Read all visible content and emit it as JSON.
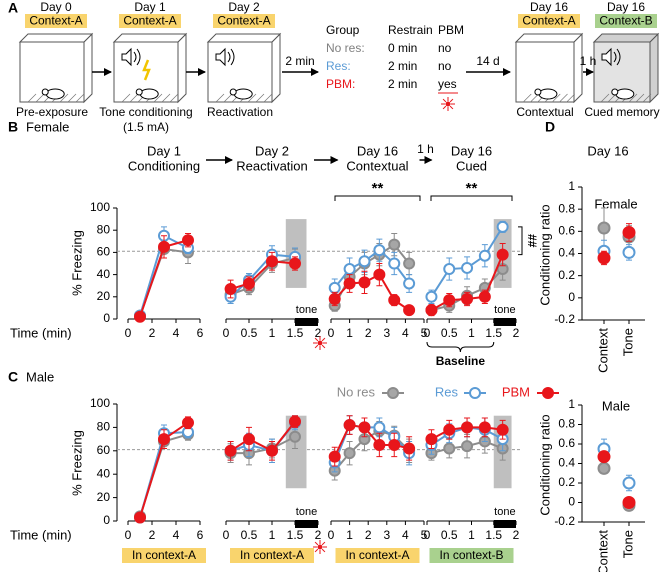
{
  "panel_a": {
    "label": "A",
    "stages": [
      {
        "day": "Day 0",
        "context": "Context-A",
        "context_color": "#f9d46d",
        "caption": [
          "Pre-exposure"
        ]
      },
      {
        "day": "Day 1",
        "context": "Context-A",
        "context_color": "#f9d46d",
        "caption": [
          "Tone conditioning",
          "(1.5 mA)"
        ]
      },
      {
        "day": "Day 2",
        "context": "Context-A",
        "context_color": "#f9d46d",
        "caption": [
          "Reactivation"
        ]
      },
      {
        "day": "Day 16",
        "context": "Context-A",
        "context_color": "#f9d46d",
        "caption": [
          "Contextual"
        ]
      },
      {
        "day": "Day 16",
        "context": "Context-B",
        "context_color": "#a9d18e",
        "caption": [
          "Cued memory"
        ]
      }
    ],
    "intervals": [
      "2 min",
      "14 d",
      "1 h"
    ],
    "groups": {
      "header": [
        "Group",
        "Restrain",
        "PBM"
      ],
      "rows": [
        [
          "No res:",
          "0 min",
          "no"
        ],
        [
          "Res:",
          "2 min",
          "no"
        ],
        [
          "PBM:",
          "2 min",
          "yes"
        ]
      ],
      "colors": [
        "#808080",
        "#5b9bd5",
        "#e8161b"
      ]
    }
  },
  "chart_data": [
    {
      "type": "line",
      "panel_label": "B",
      "title": "Female",
      "ylabel": "% Freezing",
      "xlabel": "Time (min)",
      "ylim": [
        0,
        100
      ],
      "yticks": [
        0,
        20,
        40,
        60,
        80,
        100
      ],
      "reference_line": 61,
      "subplots": [
        {
          "title": [
            "Day 1",
            "Conditioning"
          ],
          "xlim": [
            0,
            6
          ],
          "xticks": [
            0,
            2,
            4,
            6
          ],
          "x": [
            1,
            3,
            5
          ],
          "series": [
            {
              "color": "#8c8c8c",
              "fill": "#a6a6a6",
              "values": [
                3,
                63,
                60
              ],
              "errors": [
                2,
                8,
                10
              ]
            },
            {
              "color": "#5b9bd5",
              "fill": "#ffffff",
              "values": [
                3,
                75,
                64
              ],
              "errors": [
                2,
                8,
                5
              ]
            },
            {
              "color": "#e8161b",
              "fill": "#e8161b",
              "values": [
                2,
                65,
                71
              ],
              "errors": [
                2,
                10,
                6
              ]
            }
          ]
        },
        {
          "title": [
            "Day 2",
            "Reactivation"
          ],
          "xlim": [
            0,
            2
          ],
          "xticks": [
            0,
            0.5,
            1,
            1.5,
            2
          ],
          "x": [
            0.1,
            0.5,
            1,
            1.5
          ],
          "highlight": [
            1.3,
            1.75
          ],
          "tone": {
            "label": "tone",
            "range": [
              1.5,
              2
            ]
          },
          "series": [
            {
              "color": "#8c8c8c",
              "fill": "#a6a6a6",
              "values": [
                22,
                28,
                50,
                55
              ],
              "errors": [
                6,
                6,
                8,
                8
              ]
            },
            {
              "color": "#5b9bd5",
              "fill": "#ffffff",
              "values": [
                20,
                35,
                58,
                56
              ],
              "errors": [
                6,
                6,
                8,
                8
              ]
            },
            {
              "color": "#e8161b",
              "fill": "#e8161b",
              "values": [
                27,
                32,
                52,
                50
              ],
              "errors": [
                8,
                6,
                8,
                6
              ]
            }
          ]
        },
        {
          "title": [
            "Day 16",
            "Contextual"
          ],
          "xlim": [
            0,
            5
          ],
          "xticks": [
            0,
            1,
            2,
            3,
            4,
            5
          ],
          "x": [
            0.2,
            1,
            1.8,
            2.6,
            3.4,
            4.2
          ],
          "significance": "**",
          "series": [
            {
              "color": "#8c8c8c",
              "fill": "#a6a6a6",
              "values": [
                12,
                38,
                50,
                58,
                67,
                50
              ],
              "errors": [
                5,
                8,
                10,
                10,
                10,
                10
              ]
            },
            {
              "color": "#5b9bd5",
              "fill": "#ffffff",
              "values": [
                28,
                45,
                52,
                62,
                50,
                32
              ],
              "errors": [
                8,
                10,
                10,
                10,
                10,
                8
              ]
            },
            {
              "color": "#e8161b",
              "fill": "#e8161b",
              "values": [
                18,
                32,
                33,
                40,
                17,
                8
              ],
              "errors": [
                6,
                8,
                10,
                10,
                5,
                3
              ]
            }
          ]
        },
        {
          "title": [
            "Day 16",
            "Cued"
          ],
          "interval": "1 h",
          "xlim": [
            0,
            2
          ],
          "xticks": [
            0,
            0.5,
            1,
            1.5,
            2
          ],
          "x": [
            0.1,
            0.5,
            0.9,
            1.3,
            1.7
          ],
          "highlight": [
            1.5,
            1.9
          ],
          "tone": {
            "label": "tone",
            "range": [
              1.5,
              2
            ]
          },
          "significance": "**",
          "pbm_vs_res": "##",
          "baseline": "Baseline",
          "series": [
            {
              "color": "#8c8c8c",
              "fill": "#a6a6a6",
              "values": [
                8,
                12,
                21,
                28,
                45
              ],
              "errors": [
                4,
                6,
                8,
                8,
                10
              ]
            },
            {
              "color": "#5b9bd5",
              "fill": "#ffffff",
              "values": [
                20,
                45,
                46,
                57,
                83
              ],
              "errors": [
                6,
                10,
                10,
                10,
                5
              ]
            },
            {
              "color": "#e8161b",
              "fill": "#e8161b",
              "values": [
                8,
                17,
                18,
                20,
                58
              ],
              "errors": [
                5,
                6,
                6,
                6,
                10
              ]
            }
          ]
        }
      ]
    },
    {
      "type": "line",
      "panel_label": "C",
      "title": "Male",
      "ylabel": "% Freezing",
      "xlabel": "Time (min)",
      "ylim": [
        0,
        100
      ],
      "yticks": [
        0,
        20,
        40,
        60,
        80,
        100
      ],
      "reference_line": 61,
      "legend": [
        "No res",
        "Res",
        "PBM"
      ],
      "subplots": [
        {
          "context": "In context-A",
          "context_color": "#f9d46d",
          "xlim": [
            0,
            6
          ],
          "xticks": [
            0,
            2,
            4,
            6
          ],
          "x": [
            1,
            3,
            5
          ],
          "series": [
            {
              "color": "#8c8c8c",
              "fill": "#a6a6a6",
              "values": [
                4,
                68,
                74
              ],
              "errors": [
                2,
                6,
                5
              ]
            },
            {
              "color": "#5b9bd5",
              "fill": "#ffffff",
              "values": [
                3,
                75,
                76
              ],
              "errors": [
                2,
                7,
                5
              ]
            },
            {
              "color": "#e8161b",
              "fill": "#e8161b",
              "values": [
                3,
                70,
                84
              ],
              "errors": [
                2,
                8,
                5
              ]
            }
          ]
        },
        {
          "context": "In context-A",
          "context_color": "#f9d46d",
          "xlim": [
            0,
            2
          ],
          "xticks": [
            0,
            0.5,
            1,
            1.5,
            2
          ],
          "x": [
            0.1,
            0.5,
            1,
            1.5
          ],
          "highlight": [
            1.3,
            1.75
          ],
          "tone": {
            "label": "tone",
            "range": [
              1.5,
              2
            ]
          },
          "series": [
            {
              "color": "#8c8c8c",
              "fill": "#a6a6a6",
              "values": [
                58,
                58,
                62,
                72
              ],
              "errors": [
                8,
                10,
                8,
                10
              ]
            },
            {
              "color": "#5b9bd5",
              "fill": "#ffffff",
              "values": [
                60,
                65,
                60,
                84
              ],
              "errors": [
                8,
                10,
                10,
                6
              ]
            },
            {
              "color": "#e8161b",
              "fill": "#e8161b",
              "values": [
                60,
                70,
                60,
                85
              ],
              "errors": [
                8,
                10,
                8,
                5
              ]
            }
          ]
        },
        {
          "context": "In context-A",
          "context_color": "#f9d46d",
          "xlim": [
            0,
            5
          ],
          "xticks": [
            0,
            1,
            2,
            3,
            4,
            5
          ],
          "x": [
            0.2,
            1,
            1.8,
            2.6,
            3.4,
            4.2
          ],
          "series": [
            {
              "color": "#8c8c8c",
              "fill": "#a6a6a6",
              "values": [
                43,
                58,
                70,
                77,
                73,
                60
              ],
              "errors": [
                8,
                10,
                10,
                8,
                8,
                10
              ]
            },
            {
              "color": "#5b9bd5",
              "fill": "#ffffff",
              "values": [
                50,
                82,
                80,
                80,
                72,
                58
              ],
              "errors": [
                8,
                8,
                8,
                8,
                8,
                10
              ]
            },
            {
              "color": "#e8161b",
              "fill": "#e8161b",
              "values": [
                55,
                82,
                80,
                65,
                65,
                62
              ],
              "errors": [
                8,
                8,
                8,
                10,
                10,
                10
              ]
            }
          ]
        },
        {
          "context": "In context-B",
          "context_color": "#a9d18e",
          "xlim": [
            0,
            2
          ],
          "xticks": [
            0,
            0.5,
            1,
            1.5,
            2
          ],
          "x": [
            0.1,
            0.5,
            0.9,
            1.3,
            1.7
          ],
          "highlight": [
            1.5,
            1.9
          ],
          "tone": {
            "label": "tone",
            "range": [
              1.5,
              2
            ]
          },
          "series": [
            {
              "color": "#8c8c8c",
              "fill": "#a6a6a6",
              "values": [
                58,
                62,
                64,
                68,
                62
              ],
              "errors": [
                6,
                8,
                10,
                10,
                10
              ]
            },
            {
              "color": "#5b9bd5",
              "fill": "#ffffff",
              "values": [
                65,
                75,
                80,
                78,
                70
              ],
              "errors": [
                8,
                8,
                8,
                10,
                10
              ]
            },
            {
              "color": "#e8161b",
              "fill": "#e8161b",
              "values": [
                70,
                78,
                80,
                80,
                78
              ],
              "errors": [
                8,
                8,
                8,
                8,
                8
              ]
            }
          ]
        }
      ]
    },
    {
      "type": "dot",
      "panel_label": "D",
      "heading": "Day 16",
      "title": "Female",
      "ylabel": "Conditioning ratio",
      "ylim": [
        -0.2,
        1
      ],
      "yticks": [
        -0.2,
        0,
        0.2,
        0.4,
        0.6,
        0.8,
        1
      ],
      "categories": [
        "Context",
        "Tone"
      ],
      "series": [
        {
          "color": "#8c8c8c",
          "fill": "#a6a6a6",
          "values": [
            0.63,
            0.55
          ],
          "errors": [
            0.18,
            0.1
          ]
        },
        {
          "color": "#5b9bd5",
          "fill": "#ffffff",
          "values": [
            0.42,
            0.41
          ],
          "errors": [
            0.1,
            0.07
          ]
        },
        {
          "color": "#e8161b",
          "fill": "#e8161b",
          "values": [
            0.36,
            0.59
          ],
          "errors": [
            0.06,
            0.08
          ]
        }
      ]
    },
    {
      "type": "dot",
      "title": "Male",
      "ylabel": "Conditioning ratio",
      "ylim": [
        -0.2,
        1
      ],
      "yticks": [
        -0.2,
        0,
        0.2,
        0.4,
        0.6,
        0.8,
        1
      ],
      "categories": [
        "Context",
        "Tone"
      ],
      "series": [
        {
          "color": "#8c8c8c",
          "fill": "#a6a6a6",
          "values": [
            0.35,
            -0.03
          ],
          "errors": [
            0.05,
            0.05
          ]
        },
        {
          "color": "#5b9bd5",
          "fill": "#ffffff",
          "values": [
            0.55,
            0.2
          ],
          "errors": [
            0.1,
            0.08
          ]
        },
        {
          "color": "#e8161b",
          "fill": "#e8161b",
          "values": [
            0.47,
            0
          ],
          "errors": [
            0.05,
            0.05
          ]
        }
      ]
    }
  ]
}
